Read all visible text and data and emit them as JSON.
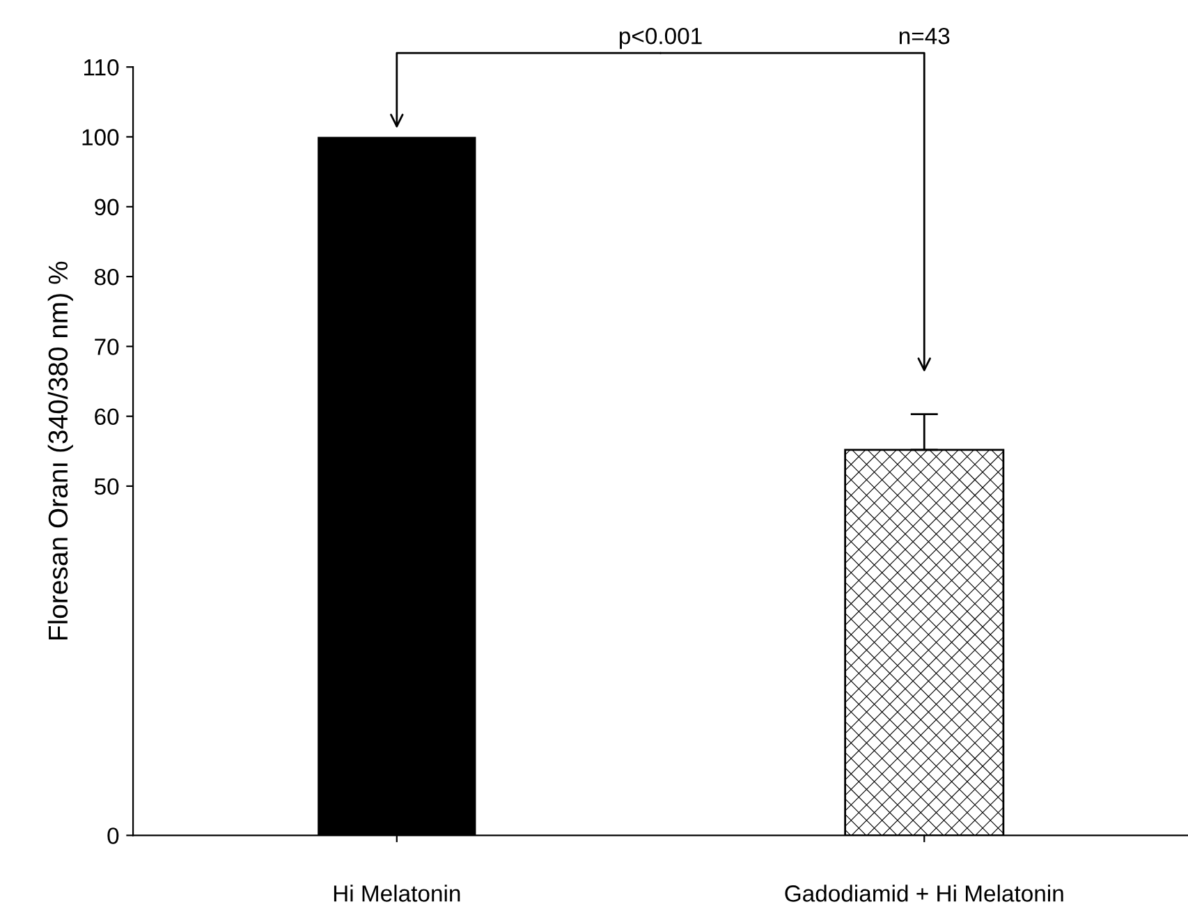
{
  "chart_data": {
    "type": "bar",
    "ylabel": "Floresan Oranı (340/380 nm) %",
    "categories": [
      "Hi Melatonin",
      "Gadodiamid + Hi Melatonin"
    ],
    "values": [
      100,
      55.2
    ],
    "colors": [
      "#000000",
      "#ffffff"
    ],
    "errors": [
      null,
      [
        55.2,
        60.3
      ]
    ],
    "ylim": [
      0,
      110
    ],
    "yticks": [
      0,
      50,
      60,
      70,
      80,
      90,
      100,
      110
    ],
    "annotations": [
      "p<0.001",
      "n=43"
    ],
    "grid": false
  }
}
